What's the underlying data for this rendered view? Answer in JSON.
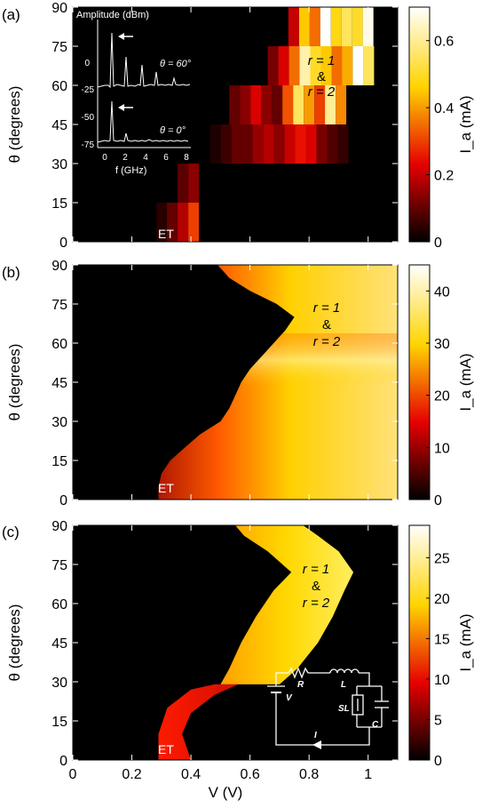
{
  "panels": [
    {
      "label": "(a)",
      "colorbar": {
        "max": 0.7,
        "ticks": [
          0,
          0.2,
          0.4,
          0.6
        ],
        "tick_labels": [
          "0",
          "0.2",
          "0.4",
          "0.6"
        ],
        "label": "I_a (mA)"
      }
    },
    {
      "label": "(b)",
      "colorbar": {
        "max": 45,
        "ticks": [
          0,
          10,
          20,
          30,
          40
        ],
        "tick_labels": [
          "0",
          "10",
          "20",
          "30",
          "40"
        ],
        "label": "I_a (mA)"
      }
    },
    {
      "label": "(c)",
      "colorbar": {
        "max": 29,
        "ticks": [
          0,
          5,
          10,
          15,
          20,
          25
        ],
        "tick_labels": [
          "0",
          "5",
          "10",
          "15",
          "20",
          "25"
        ],
        "label": "I_a (mA)"
      }
    }
  ],
  "axes": {
    "ylabel": "θ (degrees)",
    "xlabel": "V (V)",
    "yticks": [
      0,
      15,
      30,
      45,
      60,
      75,
      90
    ],
    "ytick_labels": [
      "0",
      "15",
      "30",
      "45",
      "60",
      "75",
      "90"
    ],
    "xticks": [
      0,
      0.2,
      0.4,
      0.6,
      0.8,
      1
    ],
    "xtick_labels": [
      "0",
      "0.2",
      "0.4",
      "0.6",
      "0.8",
      "1"
    ],
    "xlim": [
      0,
      1.1
    ],
    "ylim": [
      0,
      90
    ]
  },
  "annotations": {
    "r1": "r = 1",
    "amp": "&",
    "r2": "r = 2",
    "et": "ET"
  },
  "inset": {
    "ylabel": "Amplitude (dBm)",
    "xlabel": "f (GHz)",
    "xticks": [
      "0",
      "2",
      "4",
      "6",
      "8"
    ],
    "yticks_top": [
      "0",
      "-25"
    ],
    "yticks_bottom": [
      "-50",
      "-75"
    ],
    "label_top": "θ = 60°",
    "label_bottom": "θ = 0°"
  },
  "circuit": {
    "R": "R",
    "L": "L",
    "V": "V",
    "SL": "SL",
    "C": "C",
    "I": "I"
  },
  "chart_data": [
    {
      "type": "heatmap",
      "title": "(a)",
      "xlabel": "V (V)",
      "ylabel": "θ (degrees)",
      "colorbar_label": "I_a (mA)",
      "xlim": [
        0,
        1.1
      ],
      "ylim": [
        0,
        90
      ],
      "colorbar_range": [
        0,
        0.7
      ],
      "cell_width_V": 0.036,
      "cells": [
        {
          "theta_range": [
            0,
            15
          ],
          "V_start": 0.283,
          "values": [
            0.04,
            0.1,
            0.18,
            0.3
          ]
        },
        {
          "theta_range": [
            15,
            30
          ],
          "V_start": 0.355,
          "values": [
            0.09,
            0.14
          ]
        },
        {
          "theta_range": [
            30,
            45
          ],
          "V_start": 0.465,
          "values": [
            0.03,
            0.06,
            0.1,
            0.1,
            0.15,
            0.18,
            0.14,
            0.2,
            0.25,
            0.22,
            0.12,
            0.08,
            0.05
          ]
        },
        {
          "theta_range": [
            45,
            60
          ],
          "V_start": 0.53,
          "values": [
            0.1,
            0.14,
            0.22,
            0.14,
            0.1,
            0.32,
            0.55,
            0.4,
            0.3,
            0.6,
            0.38
          ]
        },
        {
          "theta_range": [
            60,
            75
          ],
          "V_start": 0.66,
          "values": [
            0.12,
            0.22,
            0.35,
            0.62,
            0.5,
            0.45,
            0.35,
            0.42,
            0.7,
            0.55
          ]
        },
        {
          "theta_range": [
            75,
            90
          ],
          "V_start": 0.73,
          "values": [
            0.2,
            0.45,
            0.35,
            0.7,
            0.48,
            0.55,
            0.5,
            0.68
          ]
        }
      ]
    },
    {
      "type": "heatmap",
      "title": "(b)",
      "xlabel": "V (V)",
      "ylabel": "θ (degrees)",
      "colorbar_label": "I_a (mA)",
      "xlim": [
        0,
        1.1
      ],
      "ylim": [
        0,
        90
      ],
      "colorbar_range": [
        0,
        45
      ],
      "threshold_boundary": [
        [
          0,
          0.29
        ],
        [
          5,
          0.29
        ],
        [
          10,
          0.3
        ],
        [
          15,
          0.33
        ],
        [
          20,
          0.38
        ],
        [
          25,
          0.43
        ],
        [
          30,
          0.5
        ],
        [
          35,
          0.53
        ],
        [
          40,
          0.55
        ],
        [
          45,
          0.57
        ],
        [
          50,
          0.6
        ],
        [
          55,
          0.64
        ],
        [
          60,
          0.68
        ],
        [
          65,
          0.72
        ],
        [
          70,
          0.75
        ],
        [
          75,
          0.69
        ],
        [
          80,
          0.6
        ],
        [
          85,
          0.53
        ],
        [
          90,
          0.49
        ]
      ],
      "max_current_theta": 55,
      "max_current": 45
    },
    {
      "type": "heatmap",
      "title": "(c)",
      "xlabel": "V (V)",
      "ylabel": "θ (degrees)",
      "colorbar_label": "I_a (mA)",
      "xlim": [
        0,
        1.1
      ],
      "ylim": [
        0,
        90
      ],
      "colorbar_range": [
        0,
        29
      ],
      "lobe_lower": {
        "theta_range": [
          0,
          29
        ],
        "left": [
          [
            0,
            0.29
          ],
          [
            10,
            0.29
          ],
          [
            20,
            0.32
          ],
          [
            27,
            0.4
          ],
          [
            29,
            0.48
          ]
        ],
        "right": [
          [
            0,
            0.4
          ],
          [
            10,
            0.37
          ],
          [
            18,
            0.4
          ],
          [
            25,
            0.48
          ],
          [
            29,
            0.56
          ]
        ],
        "peak_current": 10
      },
      "lobe_upper": {
        "theta_range": [
          29,
          90
        ],
        "left": [
          [
            29,
            0.5
          ],
          [
            35,
            0.53
          ],
          [
            45,
            0.57
          ],
          [
            55,
            0.62
          ],
          [
            65,
            0.68
          ],
          [
            72,
            0.74
          ],
          [
            80,
            0.66
          ],
          [
            86,
            0.58
          ],
          [
            90,
            0.55
          ]
        ],
        "right": [
          [
            29,
            0.7
          ],
          [
            35,
            0.76
          ],
          [
            45,
            0.83
          ],
          [
            55,
            0.88
          ],
          [
            65,
            0.92
          ],
          [
            72,
            0.95
          ],
          [
            80,
            0.9
          ],
          [
            86,
            0.83
          ],
          [
            90,
            0.78
          ]
        ],
        "peak_current": 29
      }
    }
  ]
}
